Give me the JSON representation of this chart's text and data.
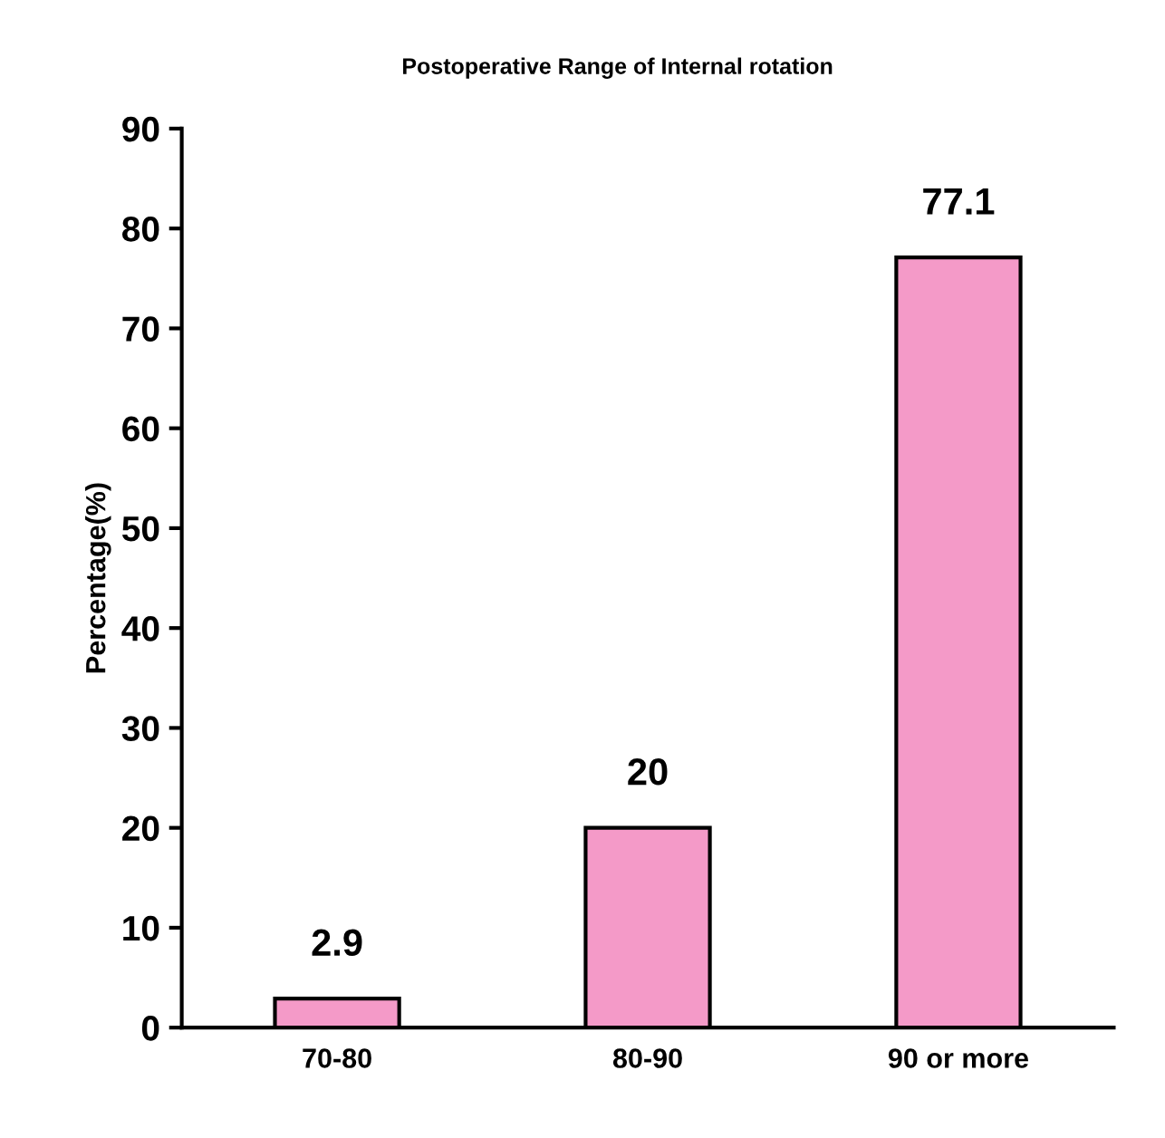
{
  "chart_data": {
    "type": "bar",
    "title": "Postoperative Range of Internal rotation",
    "ylabel": "Percentage(%)",
    "categories": [
      "70-80",
      "80-90",
      "90 or more"
    ],
    "values": [
      2.9,
      20,
      77.1
    ],
    "color": "#f49ac8",
    "ylim": [
      0,
      90
    ],
    "yticks": [
      0,
      10,
      20,
      30,
      40,
      50,
      60,
      70,
      80,
      90
    ],
    "grid": false,
    "data_labels": true
  }
}
